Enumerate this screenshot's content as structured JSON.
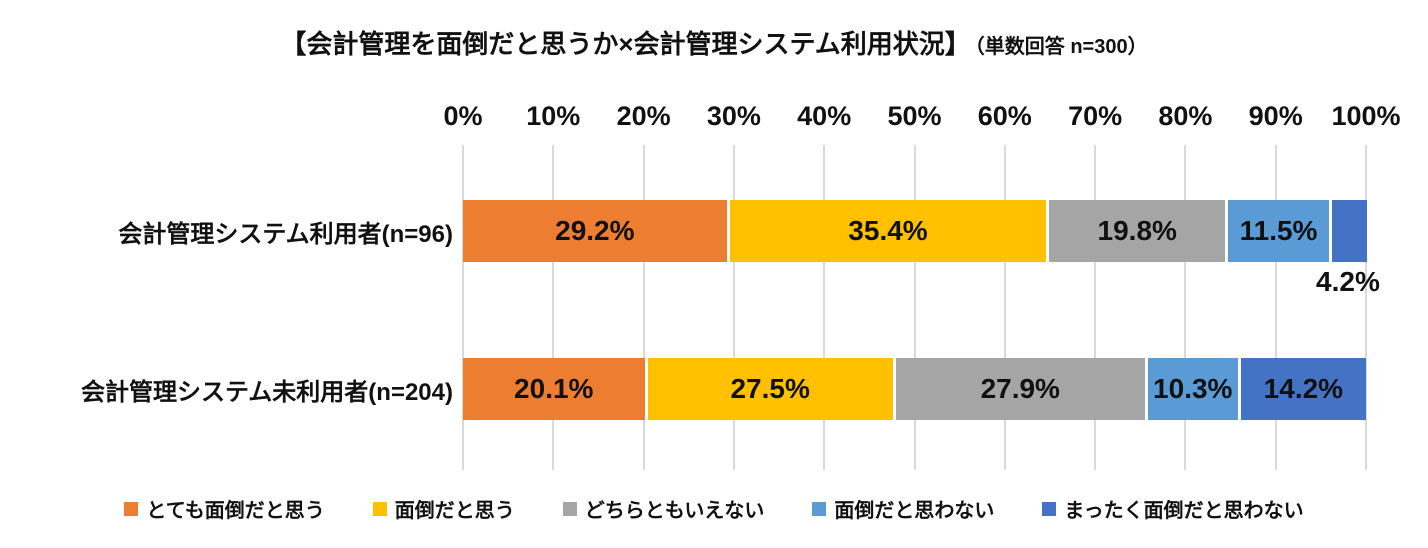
{
  "title": {
    "main": "【会計管理を面倒だと思うか×会計管理システム利用状況】",
    "sub": "（単数回答 n=300）"
  },
  "chart_data": {
    "type": "bar",
    "orientation": "horizontal-stacked",
    "title": "【会計管理を面倒だと思うか×会計管理システム利用状況】（単数回答 n=300）",
    "xlim": [
      0,
      100
    ],
    "x_ticks": [
      0,
      10,
      20,
      30,
      40,
      50,
      60,
      70,
      80,
      90,
      100
    ],
    "x_tick_labels": [
      "0%",
      "10%",
      "20%",
      "30%",
      "40%",
      "50%",
      "60%",
      "70%",
      "80%",
      "90%",
      "100%"
    ],
    "grid": "vertical",
    "gridline_color": "#d9d9d9",
    "legend_position": "bottom",
    "categories": [
      "会計管理システム利用者(n=96)",
      "会計管理システム未利用者(n=204)"
    ],
    "series": [
      {
        "name": "とても面倒だと思う",
        "color": "#ED7D31",
        "values": [
          29.2,
          20.1
        ]
      },
      {
        "name": "面倒だと思う",
        "color": "#FFC000",
        "values": [
          35.4,
          27.5
        ]
      },
      {
        "name": "どちらともいえない",
        "color": "#A5A5A5",
        "values": [
          19.8,
          27.9
        ]
      },
      {
        "name": "面倒だと思わない",
        "color": "#5B9BD5",
        "values": [
          11.5,
          10.3
        ]
      },
      {
        "name": "まったく面倒だと思わない",
        "color": "#4472C4",
        "values": [
          4.2,
          14.2
        ]
      }
    ],
    "data_labels": [
      [
        "29.2%",
        "35.4%",
        "19.8%",
        "11.5%",
        "4.2%"
      ],
      [
        "20.1%",
        "27.5%",
        "27.9%",
        "10.3%",
        "14.2%"
      ]
    ],
    "label_outside": [
      [
        false,
        false,
        false,
        false,
        true
      ],
      [
        false,
        false,
        false,
        false,
        false
      ]
    ]
  }
}
